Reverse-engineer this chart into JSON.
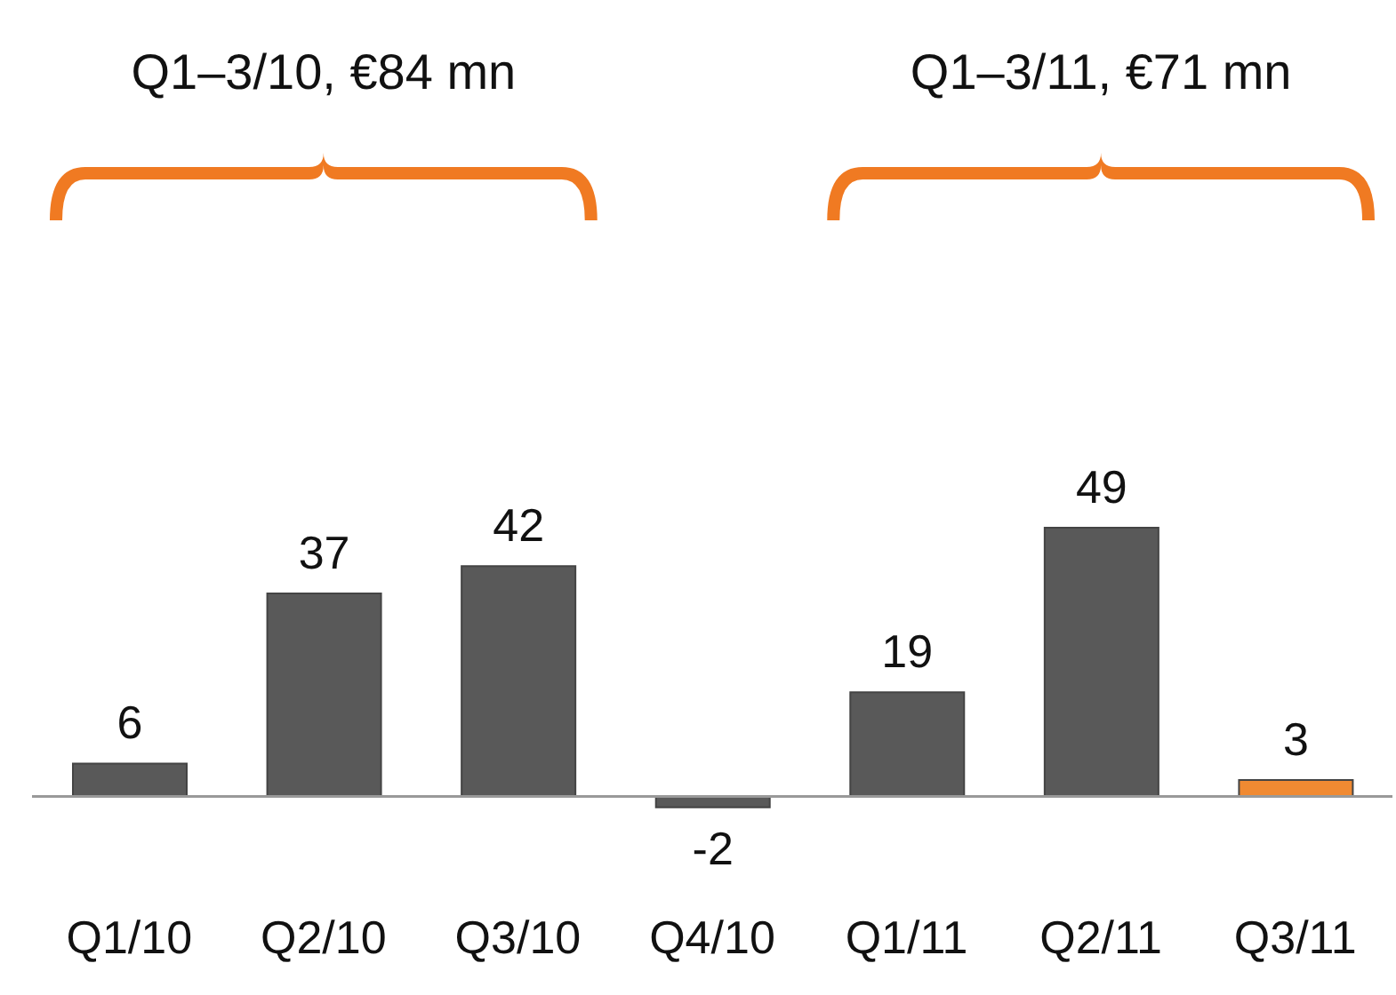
{
  "chart_data": {
    "type": "bar",
    "categories": [
      "Q1/10",
      "Q2/10",
      "Q3/10",
      "Q4/10",
      "Q1/11",
      "Q2/11",
      "Q3/11"
    ],
    "values": [
      6,
      37,
      42,
      -2,
      19,
      49,
      3
    ],
    "colors": [
      "#595959",
      "#595959",
      "#595959",
      "#595959",
      "#595959",
      "#595959",
      "#f08a32"
    ],
    "data_labels": true,
    "annotations": [
      "Q1–3/10, €84 mn",
      "Q1–3/11, €71 mn"
    ]
  }
}
